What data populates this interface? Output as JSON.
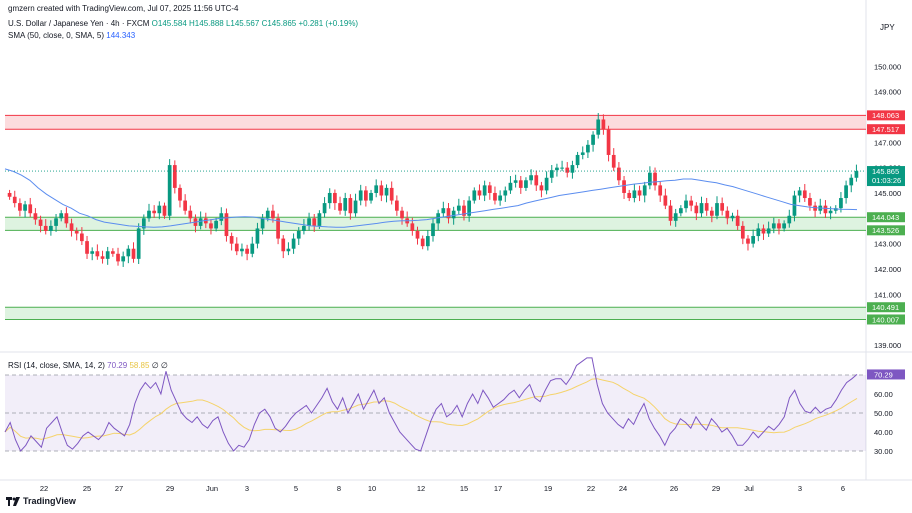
{
  "header": {
    "creator_text": "gmzern created with TradingView.com, Jul 07, 2025 11:56 UTC-4"
  },
  "legend": {
    "symbol": "U.S. Dollar / Japanese Yen · 4h · FXCM",
    "open": "O145.584",
    "high": "H145.888",
    "low": "L145.567",
    "close": "C145.865",
    "change": "+0.281 (+0.19%)",
    "sma_label": "SMA (50, close, 0, SMA, 5)",
    "sma_value": "144.343",
    "rsi_label": "RSI (14, close, SMA, 14, 2)",
    "rsi_value": "70.29",
    "rsi_ma_value": "58.85",
    "rsi_extra": "∅ ∅"
  },
  "currency_label": "JPY",
  "footer": {
    "brand": "TradingView"
  },
  "colors": {
    "up": "#089981",
    "down": "#f23645",
    "sma": "#5b8def",
    "rsi": "#7e57c2",
    "rsi_ma": "#f5d36b",
    "resistance_fill": "#fbd3d6",
    "support_fill": "#d6f0d8"
  },
  "chart_data": {
    "type": "candlestick",
    "symbol": "USDJPY",
    "interval": "4h",
    "ylim": [
      139,
      150.8
    ],
    "y_ticks": [
      139,
      140,
      141,
      142,
      143,
      144,
      145,
      146,
      147,
      148,
      149,
      150
    ],
    "x_tick_labels": [
      "22",
      "25",
      "27",
      "29",
      "Jun",
      "3",
      "5",
      "8",
      "10",
      "12",
      "15",
      "17",
      "19",
      "22",
      "24",
      "26",
      "29",
      "Jul",
      "3",
      "6"
    ],
    "zones": [
      {
        "kind": "resistance",
        "low": 147.517,
        "high": 148.063
      },
      {
        "kind": "support",
        "low": 143.526,
        "high": 144.043
      },
      {
        "kind": "support",
        "low": 140.007,
        "high": 140.491
      }
    ],
    "price_labels": [
      {
        "value": 148.063,
        "text": "148.063",
        "color": "#f23645"
      },
      {
        "value": 147.517,
        "text": "147.517",
        "color": "#f23645"
      },
      {
        "value": 145.865,
        "text": "145.865",
        "color": "#089981",
        "sub": "01:03:26"
      },
      {
        "value": 144.043,
        "text": "144.043",
        "color": "#4caf50"
      },
      {
        "value": 143.526,
        "text": "143.526",
        "color": "#4caf50"
      },
      {
        "value": 140.491,
        "text": "140.491",
        "color": "#4caf50"
      },
      {
        "value": 140.007,
        "text": "140.007",
        "color": "#4caf50"
      }
    ],
    "close_series": [
      144.85,
      144.6,
      144.3,
      144.55,
      144.2,
      143.95,
      143.7,
      143.5,
      143.7,
      144.0,
      144.2,
      143.8,
      143.5,
      143.4,
      143.1,
      142.6,
      142.7,
      142.5,
      142.4,
      142.7,
      142.6,
      142.3,
      142.5,
      142.8,
      142.4,
      143.6,
      144.0,
      144.3,
      144.2,
      144.5,
      144.1,
      146.1,
      145.2,
      144.7,
      144.3,
      144.0,
      143.7,
      144.0,
      143.8,
      143.6,
      143.9,
      144.2,
      143.3,
      143.0,
      142.7,
      142.8,
      142.6,
      143.0,
      143.6,
      144.0,
      144.3,
      144.0,
      143.2,
      142.7,
      142.8,
      143.2,
      143.5,
      143.7,
      144.0,
      143.7,
      144.2,
      144.6,
      145.0,
      144.6,
      144.3,
      144.8,
      144.2,
      144.7,
      145.1,
      144.7,
      145.0,
      145.3,
      144.9,
      145.2,
      144.7,
      144.3,
      144.0,
      143.8,
      143.5,
      143.2,
      142.9,
      143.3,
      143.8,
      144.2,
      144.4,
      144.0,
      144.3,
      144.5,
      144.1,
      144.7,
      145.1,
      144.9,
      145.3,
      145.0,
      144.7,
      144.9,
      145.1,
      145.4,
      145.5,
      145.2,
      145.5,
      145.7,
      145.3,
      145.1,
      145.6,
      145.9,
      146.0,
      146.0,
      145.8,
      146.1,
      146.5,
      146.6,
      146.9,
      147.3,
      147.9,
      147.5,
      146.5,
      146.0,
      145.5,
      145.0,
      144.8,
      145.1,
      144.9,
      145.3,
      145.8,
      145.3,
      144.9,
      144.5,
      143.9,
      144.2,
      144.4,
      144.7,
      144.5,
      144.2,
      144.6,
      144.3,
      144.1,
      144.6,
      144.3,
      144.0,
      144.1,
      143.7,
      143.2,
      143.0,
      143.3,
      143.6,
      143.4,
      143.6,
      143.8,
      143.6,
      143.8,
      144.1,
      144.9,
      145.1,
      144.8,
      144.5,
      144.3,
      144.5,
      144.2,
      144.3,
      144.4,
      144.8,
      145.3,
      145.6,
      145.865
    ],
    "sma_series": [
      145.95,
      145.85,
      145.7,
      145.5,
      145.2,
      144.95,
      144.75,
      144.55,
      144.4,
      144.2,
      144.1,
      143.95,
      143.85,
      143.8,
      143.75,
      143.7,
      143.68,
      143.66,
      143.65,
      143.66,
      143.7,
      143.75,
      143.8,
      143.85,
      143.9,
      143.95,
      144.0,
      144.02,
      144.05,
      144.06,
      144.05,
      144.0,
      143.95,
      143.9,
      143.85,
      143.8,
      143.75,
      143.7,
      143.68,
      143.66,
      143.65,
      143.65,
      143.68,
      143.72,
      143.76,
      143.8,
      143.85,
      143.88,
      143.9,
      143.9,
      143.92,
      143.95,
      144.0,
      144.05,
      144.1,
      144.15,
      144.2,
      144.25,
      144.3,
      144.35,
      144.4,
      144.45,
      144.5,
      144.6,
      144.68,
      144.75,
      144.82,
      144.9,
      144.95,
      145.0,
      145.05,
      145.1,
      145.15,
      145.2,
      145.25,
      145.3,
      145.35,
      145.38,
      145.42,
      145.45,
      145.48,
      145.5,
      145.55,
      145.55,
      145.5,
      145.45,
      145.4,
      145.32,
      145.25,
      145.15,
      145.05,
      144.95,
      144.85,
      144.75,
      144.65,
      144.55,
      144.5,
      144.45,
      144.42,
      144.4,
      144.38,
      144.36,
      144.35,
      144.343
    ],
    "rsi": {
      "ylim": [
        20,
        80
      ],
      "levels": [
        30,
        50,
        70
      ],
      "y_ticks": [
        30,
        40,
        50,
        60,
        70
      ],
      "values": [
        40,
        45,
        36,
        30,
        33,
        38,
        35,
        32,
        42,
        45,
        48,
        40,
        33,
        31,
        34,
        38,
        40,
        38,
        36,
        39,
        45,
        42,
        40,
        38,
        44,
        55,
        62,
        66,
        63,
        66,
        60,
        72,
        62,
        56,
        50,
        47,
        45,
        48,
        44,
        42,
        46,
        48,
        40,
        34,
        30,
        33,
        32,
        36,
        44,
        50,
        52,
        48,
        42,
        40,
        43,
        47,
        50,
        52,
        54,
        50,
        54,
        58,
        63,
        56,
        52,
        58,
        50,
        55,
        60,
        52,
        57,
        62,
        55,
        58,
        50,
        45,
        40,
        37,
        34,
        31,
        30,
        38,
        46,
        52,
        55,
        48,
        50,
        54,
        48,
        55,
        60,
        55,
        62,
        58,
        53,
        55,
        57,
        60,
        62,
        58,
        62,
        65,
        58,
        56,
        62,
        67,
        68,
        68,
        65,
        69,
        75,
        77,
        79,
        79,
        65,
        55,
        50,
        47,
        44,
        42,
        47,
        44,
        50,
        55,
        47,
        42,
        38,
        33,
        39,
        42,
        47,
        45,
        42,
        48,
        44,
        41,
        47,
        44,
        40,
        42,
        38,
        33,
        33,
        36,
        40,
        37,
        40,
        43,
        41,
        44,
        48,
        58,
        62,
        55,
        51,
        50,
        53,
        50,
        52,
        53,
        57,
        62,
        66,
        68,
        70.29
      ]
    }
  }
}
